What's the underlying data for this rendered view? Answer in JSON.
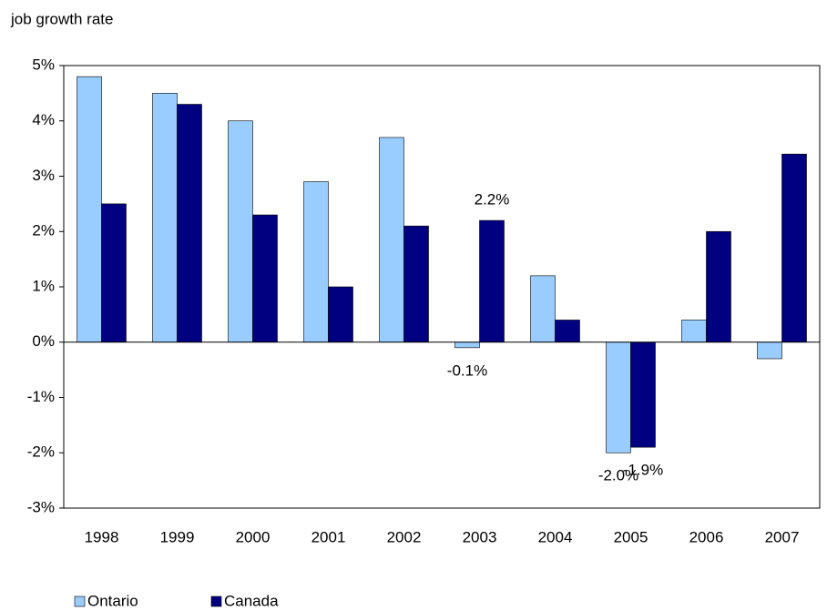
{
  "chart_data": {
    "type": "bar",
    "y_label": "job growth rate",
    "categories": [
      "1998",
      "1999",
      "2000",
      "2001",
      "2002",
      "2003",
      "2004",
      "2005",
      "2006",
      "2007"
    ],
    "series": [
      {
        "name": "Ontario",
        "color": "#99ccff",
        "values": [
          4.8,
          4.5,
          4.0,
          2.9,
          3.7,
          -0.1,
          1.2,
          -2.0,
          0.4,
          -0.3
        ],
        "value_labels": [
          null,
          null,
          null,
          null,
          null,
          "-0.1%",
          null,
          "-2.0%",
          null,
          null
        ]
      },
      {
        "name": "Canada",
        "color": "#000080",
        "values": [
          2.5,
          4.3,
          2.3,
          1.0,
          2.1,
          2.2,
          0.4,
          -1.9,
          2.0,
          3.4
        ],
        "value_labels": [
          null,
          null,
          null,
          null,
          null,
          "2.2%",
          null,
          "-1.9%",
          null,
          null
        ]
      }
    ],
    "ylim": [
      -3,
      5
    ],
    "yticks": [
      {
        "value": -3,
        "label": "-3%"
      },
      {
        "value": -2,
        "label": "-2%"
      },
      {
        "value": -1,
        "label": "-1%"
      },
      {
        "value": 0,
        "label": "0%"
      },
      {
        "value": 1,
        "label": "1%"
      },
      {
        "value": 2,
        "label": "2%"
      },
      {
        "value": 3,
        "label": "3%"
      },
      {
        "value": 4,
        "label": "4%"
      },
      {
        "value": 5,
        "label": "5%"
      }
    ],
    "grid": false,
    "legend": "bottom-left"
  }
}
